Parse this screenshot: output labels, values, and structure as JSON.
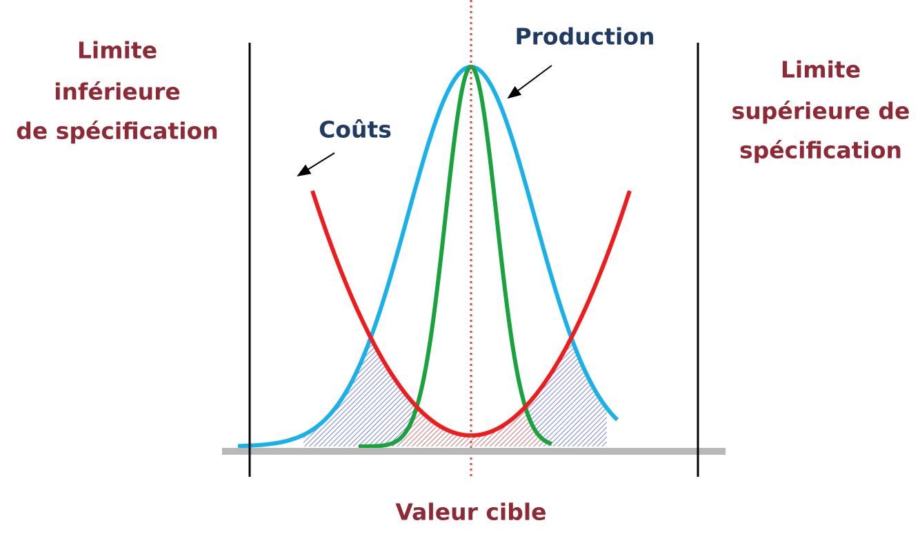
{
  "lower_limit": {
    "lines": [
      "Limite",
      "inférieure",
      "de spécification"
    ]
  },
  "upper_limit": {
    "lines": [
      "Limite",
      "supérieure de",
      "spécification"
    ]
  },
  "costs_label": "Coûts",
  "production_label": "Production",
  "target_label": "Valeur cible"
}
